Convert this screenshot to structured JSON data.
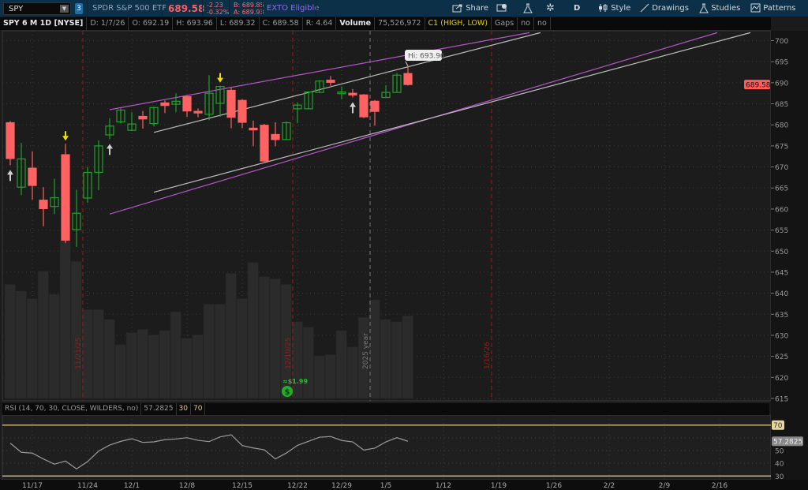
{
  "toolbar": {
    "symbol": "SPY",
    "link_group": "3",
    "description": "SPDR S&P 500 ETF",
    "last": "689.58",
    "change": "-2.23",
    "change_pct": "-0.32%",
    "bid": "B: 689.85",
    "ask": "A: 689.93",
    "exto": "EXTO Eligible",
    "share": "Share",
    "aggregation": "D",
    "style": "Style",
    "drawings": "Drawings",
    "studies": "Studies",
    "patterns": "Patterns"
  },
  "info": {
    "title": "SPY 6 M 1D [NYSE]",
    "date": "D: 1/7/26",
    "open": "O: 692.19",
    "high": "H: 693.96",
    "low": "L: 689.32",
    "close": "C: 689.58",
    "range": "R: 4.64",
    "volume_label": "Volume",
    "volume": "75,526,972",
    "c1": "C1 (HIGH, LOW)",
    "gaps": "Gaps",
    "no1": "no",
    "no2": "no"
  },
  "rsi": {
    "label": "RSI (14, 70, 30, CLOSE, WILDERS, no)",
    "value": "57.2825",
    "low": "30",
    "high": "70",
    "ticks": [
      "70",
      "50",
      "40",
      "30"
    ]
  },
  "colors": {
    "up": "#1fa22b",
    "down": "#ff6262",
    "trend": "#b455c8",
    "trend2": "#bdbdbd",
    "event": "#9a1c1c",
    "last_price": "#ff5d5d",
    "rsi_band": "#c9b27a"
  },
  "chart_data": {
    "type": "candlestick",
    "price_ticks": [
      700,
      695,
      690,
      685,
      680,
      675,
      670,
      665,
      660,
      655,
      650,
      645,
      640,
      635,
      630,
      625,
      620,
      615
    ],
    "ylim": [
      615,
      700
    ],
    "last_price_label": "689.58",
    "hi_label": "Hi: 693.96",
    "x_labels": [
      "11/17",
      "11/24",
      "12/1",
      "12/8",
      "12/15",
      "12/22",
      "12/29",
      "1/5",
      "1/12",
      "1/19",
      "1/26",
      "2/2",
      "2/9",
      "2/16"
    ],
    "dates": [
      "11/13",
      "11/14",
      "11/17",
      "11/18",
      "11/19",
      "11/20",
      "11/21",
      "11/24",
      "11/25",
      "11/26",
      "11/28",
      "12/1",
      "12/2",
      "12/3",
      "12/4",
      "12/5",
      "12/8",
      "12/9",
      "12/10",
      "12/11",
      "12/12",
      "12/15",
      "12/16",
      "12/17",
      "12/18",
      "12/19",
      "12/22",
      "12/23",
      "12/24",
      "12/26",
      "12/29",
      "12/30",
      "12/31",
      "1/2",
      "1/5",
      "1/6",
      "1/7"
    ],
    "ohlc": [
      [
        680.5,
        680.9,
        670.4,
        672
      ],
      [
        665.2,
        675.7,
        663.3,
        671.9
      ],
      [
        669.7,
        673.7,
        662.2,
        665.6
      ],
      [
        662.1,
        665.2,
        655.9,
        660.1
      ],
      [
        660.6,
        667.2,
        658.8,
        662.7
      ],
      [
        672.9,
        675.5,
        651.9,
        652.6
      ],
      [
        655.1,
        664.6,
        651,
        659
      ],
      [
        662.6,
        670,
        661.5,
        668.7
      ],
      [
        668.7,
        676.3,
        664.5,
        675
      ],
      [
        677.6,
        681.6,
        676.6,
        679.7
      ],
      [
        680.7,
        684,
        680.3,
        683.5
      ],
      [
        678.7,
        683,
        678.5,
        680.2
      ],
      [
        682,
        683.3,
        679.1,
        681.4
      ],
      [
        680.3,
        684.3,
        679.6,
        684.1
      ],
      [
        685.2,
        685.8,
        682.8,
        684.6
      ],
      [
        684.9,
        687.5,
        683,
        685.6
      ],
      [
        686.7,
        686.9,
        681.9,
        683.3
      ],
      [
        683.2,
        683.9,
        681.8,
        682.9
      ],
      [
        682.5,
        691.8,
        681.1,
        687.5
      ],
      [
        685.1,
        689.3,
        681.9,
        689.1
      ],
      [
        688.2,
        688.8,
        679.2,
        681.8
      ],
      [
        685.8,
        686.1,
        679.2,
        680.6
      ],
      [
        679.2,
        681,
        674.9,
        678.8
      ],
      [
        679.9,
        680.2,
        671.2,
        671.4
      ],
      [
        677.7,
        680.6,
        674.9,
        676.5
      ],
      [
        676.5,
        680.8,
        676.5,
        680.5
      ],
      [
        683.8,
        685.3,
        680.4,
        684.7
      ],
      [
        683.8,
        688,
        683.8,
        687.8
      ],
      [
        687.7,
        690.6,
        687.7,
        690.4
      ],
      [
        690.6,
        691.6,
        689.3,
        690.1
      ],
      [
        687.4,
        689.1,
        686.1,
        687.8
      ],
      [
        687.5,
        688.5,
        686.5,
        687.1
      ],
      [
        687.1,
        687.3,
        681.6,
        681.9
      ],
      [
        685.6,
        685.9,
        679.8,
        683.2
      ],
      [
        686.5,
        689.4,
        686.5,
        687.7
      ],
      [
        687.7,
        692.3,
        687.7,
        691.8
      ],
      [
        692.19,
        693.96,
        689.32,
        689.58
      ]
    ],
    "volume_millions": [
      104,
      98,
      91,
      116,
      95,
      144,
      125,
      81,
      81,
      72,
      49,
      60,
      63,
      58,
      62,
      79,
      55,
      58,
      86,
      86,
      114,
      91,
      124,
      111,
      109,
      104,
      70,
      65,
      39,
      40,
      62,
      47,
      74,
      90,
      72,
      70,
      75.5
    ],
    "rsi_values": [
      55.8,
      48.6,
      48.0,
      43.4,
      39.3,
      41.8,
      35.6,
      41.3,
      49.6,
      54.3,
      57.2,
      59.3,
      56.4,
      56.8,
      58.5,
      59.1,
      60.1,
      58.0,
      57.0,
      60.7,
      62.4,
      53.9,
      52.0,
      50.6,
      43.4,
      48.1,
      54.1,
      57.2,
      60.5,
      61.0,
      57.9,
      56.8,
      50.4,
      51.9,
      56.8,
      60.1,
      57.28
    ],
    "signals": [
      {
        "date": "11/13",
        "type": "up",
        "color": "#d0d0d0"
      },
      {
        "date": "11/20",
        "type": "down",
        "color": "#f0e000"
      },
      {
        "date": "11/26",
        "type": "up",
        "color": "#d0d0d0"
      },
      {
        "date": "12/11",
        "type": "down",
        "color": "#f0e000"
      },
      {
        "date": "12/30",
        "type": "up",
        "color": "#d0d0d0"
      }
    ],
    "event_lines": [
      {
        "label": "11/21/25",
        "after": "11/21",
        "color": "#9a1c1c"
      },
      {
        "label": "12/19/25",
        "after": "12/19",
        "color": "#9a1c1c"
      },
      {
        "label": "2025 year",
        "after": "12/31",
        "color": "#777777"
      },
      {
        "label": "1/16/26",
        "after": "1/16",
        "color": "#9a1c1c"
      }
    ],
    "dividend": {
      "label": "≈$1.99",
      "date": "12/19"
    },
    "trendlines": [
      {
        "color": "#b455c8",
        "from": [
          "11/26",
          683.6
        ],
        "to": [
          "1/22",
          701.9
        ]
      },
      {
        "color": "#bdbdbd",
        "from": [
          "12/3",
          678.2
        ],
        "to": [
          "1/23",
          701.9
        ]
      },
      {
        "color": "#b455c8",
        "from": [
          "11/26",
          658.8
        ],
        "to": [
          "2/16",
          701.9
        ]
      },
      {
        "color": "#bdbdbd",
        "from": [
          "12/3",
          664.0
        ],
        "to": [
          "2/19",
          701.9
        ]
      }
    ]
  }
}
